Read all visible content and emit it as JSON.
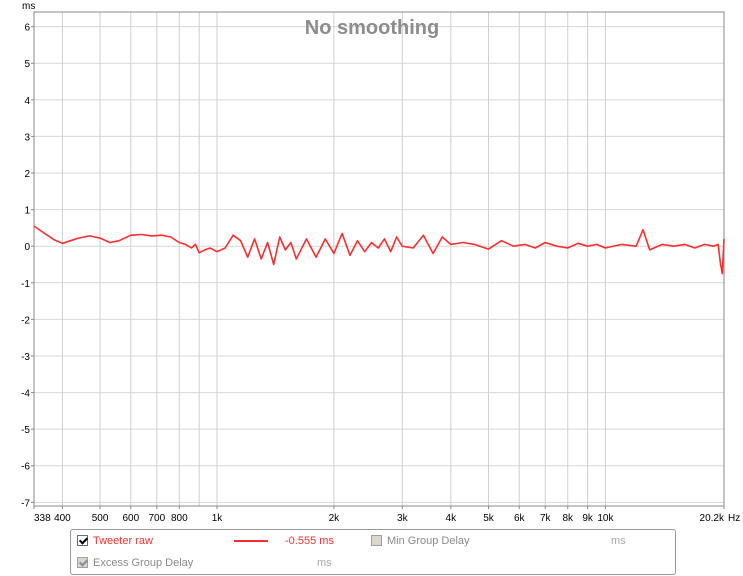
{
  "chart_data": {
    "type": "line",
    "title": "No smoothing",
    "ylabel": "ms",
    "xlabel": "Hz",
    "xscale": "log",
    "xlim": [
      338,
      20200
    ],
    "ylim": [
      -7.1,
      6.4
    ],
    "grid": true,
    "y_ticks": [
      6,
      5,
      4,
      3,
      2,
      1,
      0,
      -1,
      -2,
      -3,
      -4,
      -5,
      -6,
      -7
    ],
    "x_ticks": [
      {
        "v": 338,
        "label": "338"
      },
      {
        "v": 400,
        "label": "400"
      },
      {
        "v": 500,
        "label": "500"
      },
      {
        "v": 600,
        "label": "600"
      },
      {
        "v": 700,
        "label": "700"
      },
      {
        "v": 800,
        "label": "800"
      },
      {
        "v": 1000,
        "label": "1k"
      },
      {
        "v": 2000,
        "label": "2k"
      },
      {
        "v": 3000,
        "label": "3k"
      },
      {
        "v": 4000,
        "label": "4k"
      },
      {
        "v": 5000,
        "label": "5k"
      },
      {
        "v": 6000,
        "label": "6k"
      },
      {
        "v": 7000,
        "label": "7k"
      },
      {
        "v": 8000,
        "label": "8k"
      },
      {
        "v": 9000,
        "label": "9k"
      },
      {
        "v": 10000,
        "label": "10k"
      },
      {
        "v": 20200,
        "label": "20.2k"
      }
    ],
    "minor_gridlines": [
      900
    ],
    "series": [
      {
        "name": "Tweeter raw",
        "color": "#ff2d2d",
        "x": [
          338,
          360,
          380,
          400,
          420,
          440,
          470,
          500,
          530,
          560,
          600,
          640,
          680,
          720,
          760,
          800,
          830,
          860,
          880,
          900,
          930,
          960,
          1000,
          1050,
          1100,
          1150,
          1200,
          1250,
          1300,
          1350,
          1400,
          1450,
          1500,
          1550,
          1600,
          1700,
          1800,
          1900,
          2000,
          2100,
          2200,
          2300,
          2400,
          2500,
          2600,
          2700,
          2800,
          2900,
          3000,
          3200,
          3400,
          3600,
          3800,
          4000,
          4300,
          4600,
          5000,
          5400,
          5800,
          6200,
          6600,
          7000,
          7500,
          8000,
          8500,
          9000,
          9500,
          10000,
          11000,
          12000,
          12500,
          13000,
          14000,
          15000,
          16000,
          17000,
          18000,
          19000,
          19500,
          19800,
          20000,
          20200
        ],
        "y": [
          0.55,
          0.35,
          0.18,
          0.08,
          0.15,
          0.22,
          0.28,
          0.22,
          0.1,
          0.15,
          0.3,
          0.32,
          0.28,
          0.3,
          0.25,
          0.1,
          0.05,
          -0.05,
          0.05,
          -0.18,
          -0.1,
          -0.05,
          -0.15,
          -0.05,
          0.3,
          0.15,
          -0.3,
          0.2,
          -0.35,
          0.1,
          -0.5,
          0.25,
          -0.1,
          0.1,
          -0.35,
          0.2,
          -0.3,
          0.2,
          -0.2,
          0.35,
          -0.25,
          0.15,
          -0.15,
          0.1,
          -0.05,
          0.2,
          -0.15,
          0.25,
          0.0,
          -0.05,
          0.3,
          -0.2,
          0.25,
          0.05,
          0.1,
          0.05,
          -0.08,
          0.15,
          0.0,
          0.05,
          -0.05,
          0.1,
          0.0,
          -0.05,
          0.08,
          0.0,
          0.05,
          -0.05,
          0.05,
          0.0,
          0.45,
          -0.1,
          0.05,
          0.0,
          0.05,
          -0.05,
          0.05,
          0.0,
          0.05,
          -0.5,
          -0.75,
          0.2
        ]
      }
    ]
  },
  "legend": {
    "items": [
      {
        "label": "Tweeter raw",
        "value": "-0.555 ms",
        "checked": true,
        "enabled": true,
        "color": "#ff2d2d"
      },
      {
        "label": "Min Group Delay",
        "value": "ms",
        "checked": false,
        "enabled": false
      },
      {
        "label": "Excess Group Delay",
        "value": "ms",
        "checked": true,
        "enabled": false
      }
    ]
  }
}
